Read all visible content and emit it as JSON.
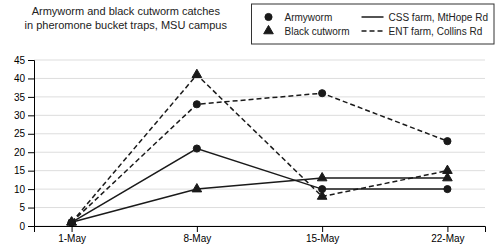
{
  "chart_data": {
    "type": "line",
    "title": "Armyworm and black cutworm catches",
    "subtitle": "in pheromone bucket traps, MSU campus",
    "categories": [
      "1-May",
      "8-May",
      "15-May",
      "22-May"
    ],
    "color": "#1a1a1a",
    "series": [
      {
        "marker": "triangle",
        "line_style": "dashed",
        "values": [
          1,
          41,
          8,
          15
        ]
      },
      {
        "marker": "circle",
        "line_style": "dashed",
        "values": [
          1,
          33,
          36,
          23
        ]
      },
      {
        "marker": "triangle",
        "line_style": "solid",
        "values": [
          1,
          10,
          13,
          13
        ]
      },
      {
        "marker": "circle",
        "line_style": "solid",
        "values": [
          1,
          21,
          10,
          10
        ]
      }
    ],
    "legend_entries": [
      {
        "label": "Armyworm",
        "marker": "circle"
      },
      {
        "label": "Black cutworm",
        "marker": "triangle"
      },
      {
        "label": "CSS farm, MtHope Rd",
        "line_style": "solid"
      },
      {
        "label": "ENT farm, Collins Rd",
        "line_style": "dashed"
      }
    ],
    "legend": "upper right",
    "ylim": [
      0,
      45
    ],
    "yticks": [
      0,
      5,
      10,
      15,
      20,
      25,
      30,
      35,
      40,
      45
    ],
    "grid": true
  }
}
